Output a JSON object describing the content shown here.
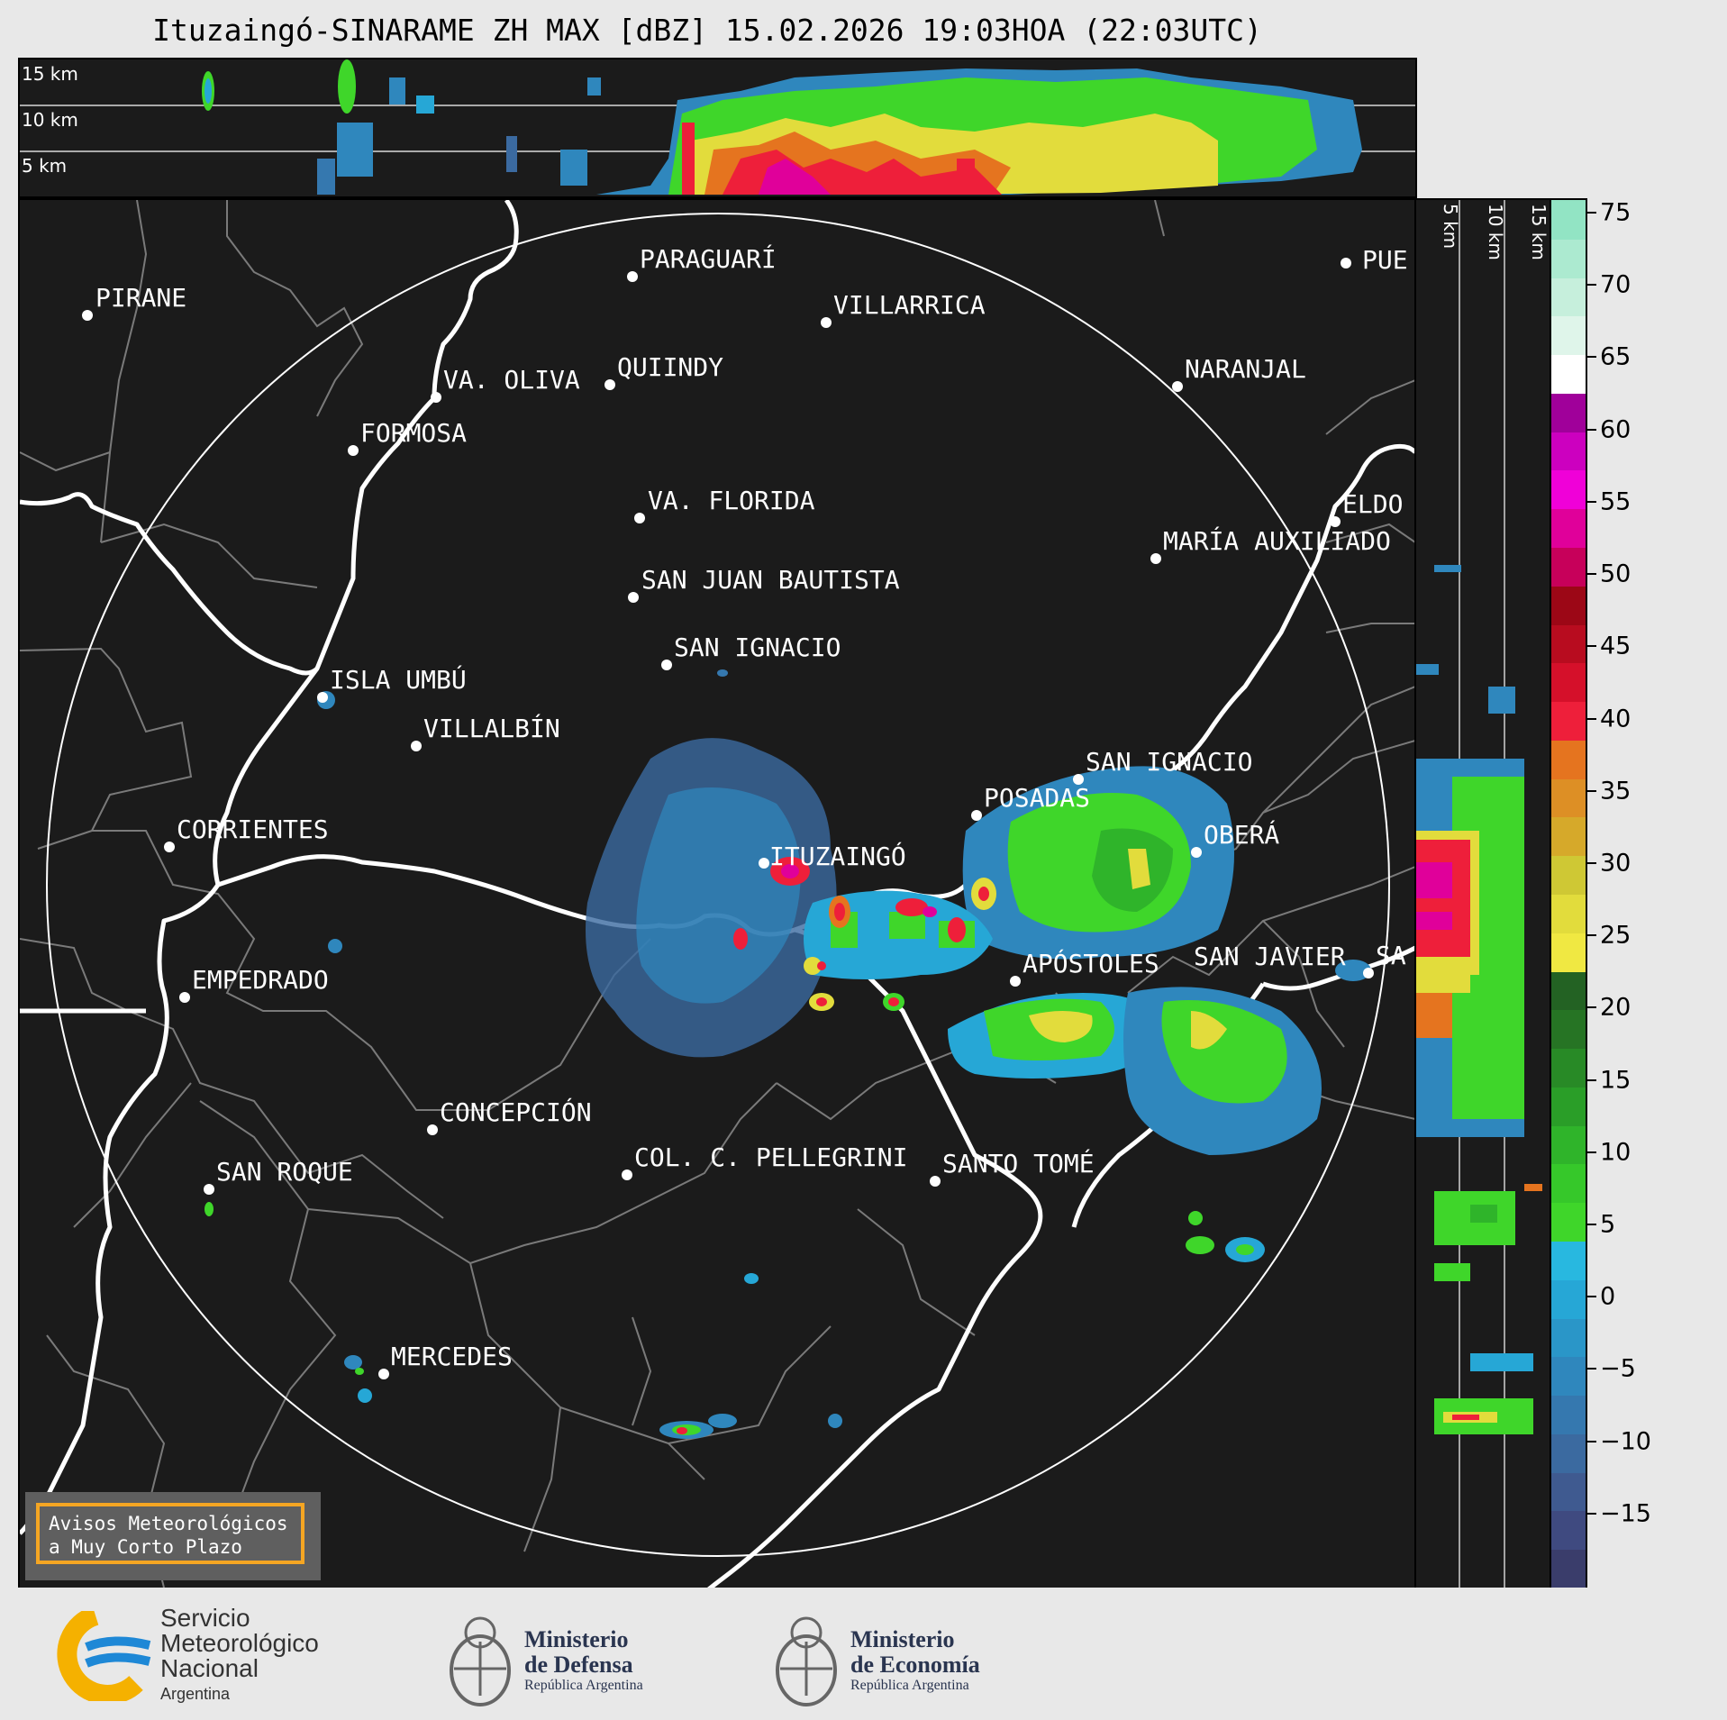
{
  "title": "Ituzaingó-SINARAME ZH MAX [dBZ] 15.02.2026 19:03HOA (22:03UTC)",
  "top_panel": {
    "altitude_labels": [
      "15 km",
      "10 km",
      "5 km"
    ]
  },
  "side_panel": {
    "altitude_labels": [
      "5 km",
      "10 km",
      "15 km"
    ]
  },
  "map": {
    "radar_site": "ITUZAINGÓ",
    "cities": [
      {
        "name": "PIRANE"
      },
      {
        "name": "PARAGUARÍ"
      },
      {
        "name": "VILLARRICA"
      },
      {
        "name": "VA. OLIVA"
      },
      {
        "name": "QUIINDY"
      },
      {
        "name": "NARANJAL"
      },
      {
        "name": "FORMOSA"
      },
      {
        "name": "VA. FLORIDA"
      },
      {
        "name": "ELDO"
      },
      {
        "name": "MARÍA AUXILIADO"
      },
      {
        "name": "SAN JUAN BAUTISTA"
      },
      {
        "name": "SAN IGNACIO"
      },
      {
        "name": "ISLA UMBÚ"
      },
      {
        "name": "VILLALBÍN"
      },
      {
        "name": "SAN IGNACIO"
      },
      {
        "name": "POSADAS"
      },
      {
        "name": "CORRIENTES"
      },
      {
        "name": "OBERÁ"
      },
      {
        "name": "EMPEDRADO"
      },
      {
        "name": "APÓSTOLES"
      },
      {
        "name": "SAN JAVIER"
      },
      {
        "name": "SA"
      },
      {
        "name": "CONCEPCIÓN"
      },
      {
        "name": "COL. C. PELLEGRINI"
      },
      {
        "name": "SANTO TOMÉ"
      },
      {
        "name": "SAN ROQUE"
      },
      {
        "name": "MERCEDES"
      },
      {
        "name": "PUE"
      }
    ],
    "notice": [
      "Avisos Meteorológicos",
      "a Muy Corto Plazo"
    ]
  },
  "colorbar": {
    "unit": "dBZ",
    "ticks": [
      "75",
      "70",
      "65",
      "60",
      "55",
      "50",
      "45",
      "40",
      "35",
      "30",
      "25",
      "20",
      "15",
      "10",
      "5",
      "0",
      "−5",
      "−10",
      "−15"
    ],
    "range": [
      -20,
      76
    ],
    "colors": [
      "#3a3d6b",
      "#3f4a80",
      "#3f5a90",
      "#3b6aa0",
      "#3578af",
      "#2f87bd",
      "#2a96c8",
      "#26a7d6",
      "#28b8e0",
      "#3fd62a",
      "#36c82a",
      "#2fb42a",
      "#2a9e28",
      "#288a26",
      "#267424",
      "#236223",
      "#f0e842",
      "#e2dc3c",
      "#cfc834",
      "#d6a92a",
      "#dd8f25",
      "#e5741f",
      "#ee1f3a",
      "#d5102a",
      "#b80c1f",
      "#9c0716",
      "#c7005a",
      "#e0009a",
      "#f000d8",
      "#cc00bf",
      "#a0009a",
      "#ffffff",
      "#dff5ea",
      "#c6efdc",
      "#acead0",
      "#92e4c4"
    ]
  },
  "footer": {
    "smn": {
      "line1": "Servicio",
      "line2": "Meteorológico",
      "line3": "Nacional",
      "line4": "Argentina"
    },
    "defensa": {
      "line1": "Ministerio",
      "line2": "de Defensa",
      "line3": "República Argentina"
    },
    "economia": {
      "line1": "Ministerio",
      "line2": "de Economía",
      "line3": "República Argentina"
    }
  }
}
